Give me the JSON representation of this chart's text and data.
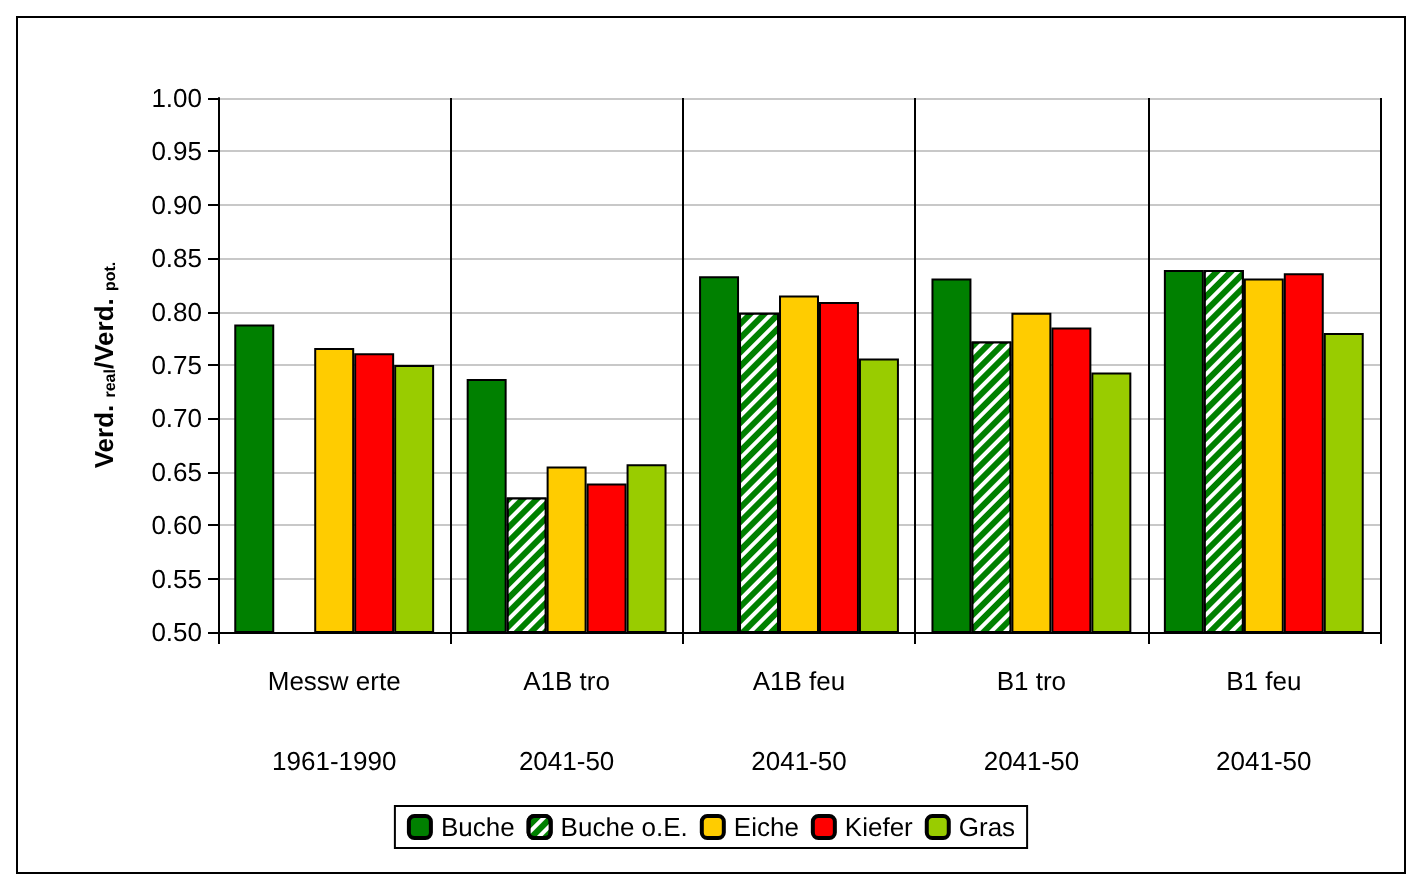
{
  "chart_data": {
    "type": "bar",
    "ylabel": "Verd. $_{real}$/Verd. $_{pot.}$",
    "categories": [
      "Messw erte",
      "A1B tro",
      "A1B feu",
      "B1 tro",
      "B1 feu"
    ],
    "annotations": [
      "1961-1990",
      "2041-50",
      "2041-50",
      "2041-50",
      "2041-50"
    ],
    "series": [
      {
        "name": "Buche",
        "color": "#008000",
        "values": [
          0.788,
          0.737,
          0.833,
          0.831,
          0.839
        ]
      },
      {
        "name": "Buche o.E.",
        "color": "#008000",
        "values": [
          null,
          0.626,
          0.799,
          0.772,
          0.839
        ]
      },
      {
        "name": "Eiche",
        "color": "#ffcc00",
        "values": [
          0.766,
          0.655,
          0.815,
          0.799,
          0.831
        ]
      },
      {
        "name": "Kiefer",
        "color": "#ff0000",
        "values": [
          0.761,
          0.639,
          0.809,
          0.785,
          0.836
        ]
      },
      {
        "name": "Gras",
        "color": "#99cc00",
        "values": [
          0.75,
          0.657,
          0.756,
          0.743,
          0.78
        ]
      }
    ],
    "ylim": [
      0.5,
      1.0
    ],
    "yticks": [
      {
        "value": 0.5,
        "label": "0.50"
      },
      {
        "value": 0.55,
        "label": "0.55"
      },
      {
        "value": 0.6,
        "label": "0.60"
      },
      {
        "value": 0.65,
        "label": "0.65"
      },
      {
        "value": 0.7,
        "label": "0.70"
      },
      {
        "value": 0.75,
        "label": "0.75"
      },
      {
        "value": 0.8,
        "label": "0.80"
      },
      {
        "value": 0.85,
        "label": "0.85"
      },
      {
        "value": 0.9,
        "label": "0.90"
      },
      {
        "value": 0.95,
        "label": "0.95"
      },
      {
        "value": 1.0,
        "label": "1.00"
      }
    ],
    "grid": true,
    "legend": "bottom"
  }
}
